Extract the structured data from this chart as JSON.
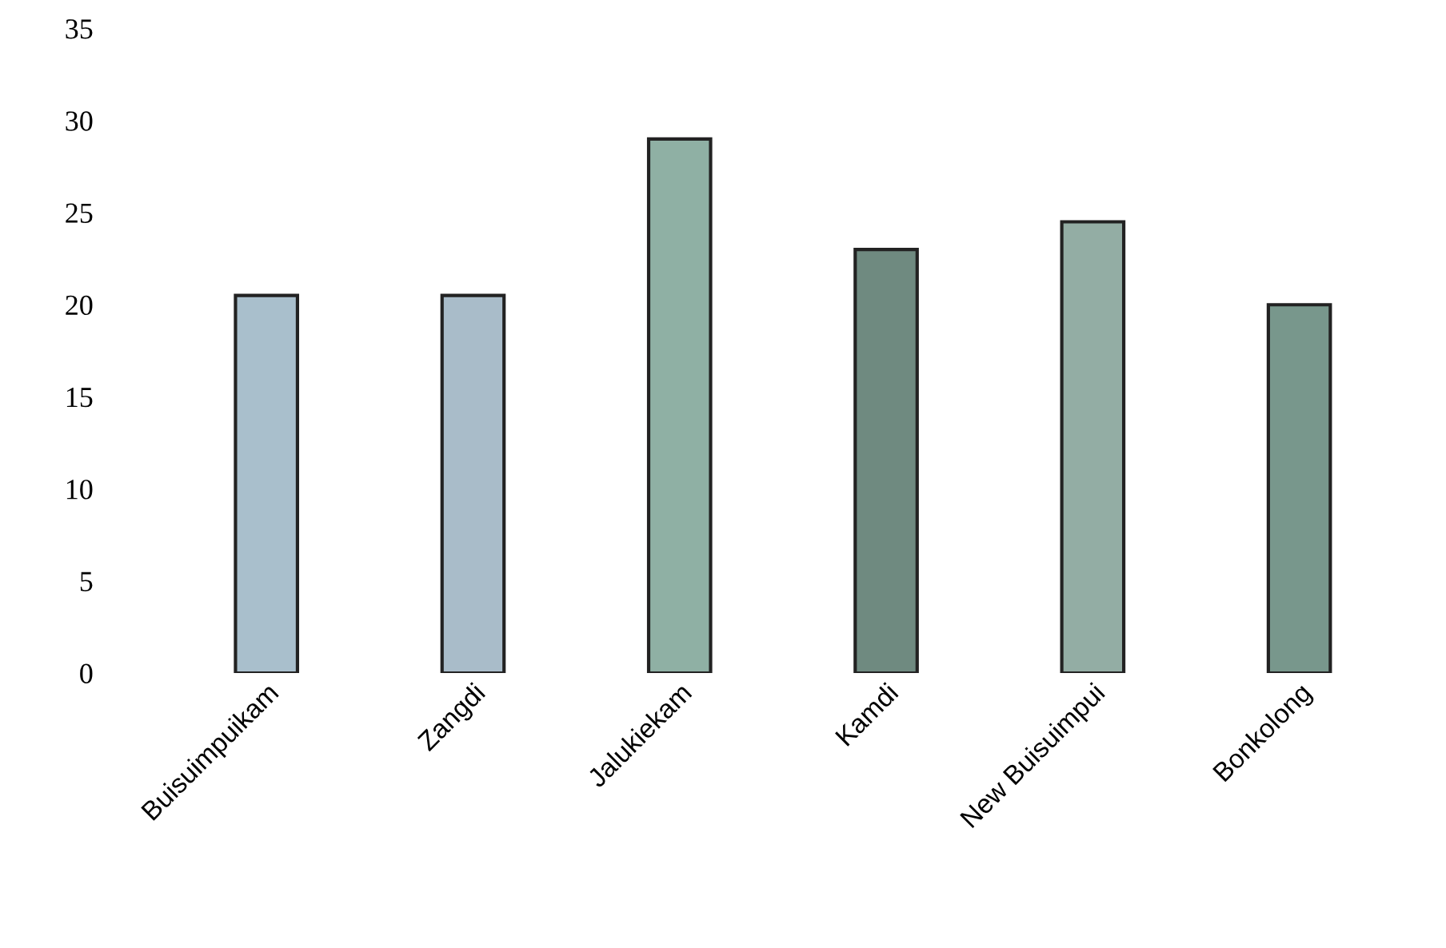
{
  "chart_data": {
    "type": "bar",
    "categories": [
      "Buisuimpuikam",
      "Zangdi",
      "Jalukiekam",
      "Kamdi",
      "New Buisuimpui",
      "Bonkolong"
    ],
    "values": [
      20.5,
      20.5,
      29,
      23,
      24.5,
      20
    ],
    "colors": [
      "#a9bfcc",
      "#a9bcc9",
      "#8fb0a4",
      "#6f8a80",
      "#93ada4",
      "#78978c"
    ],
    "ylim": [
      0,
      35
    ],
    "yticks": [
      0,
      5,
      10,
      15,
      20,
      25,
      30,
      35
    ],
    "grid": false
  }
}
